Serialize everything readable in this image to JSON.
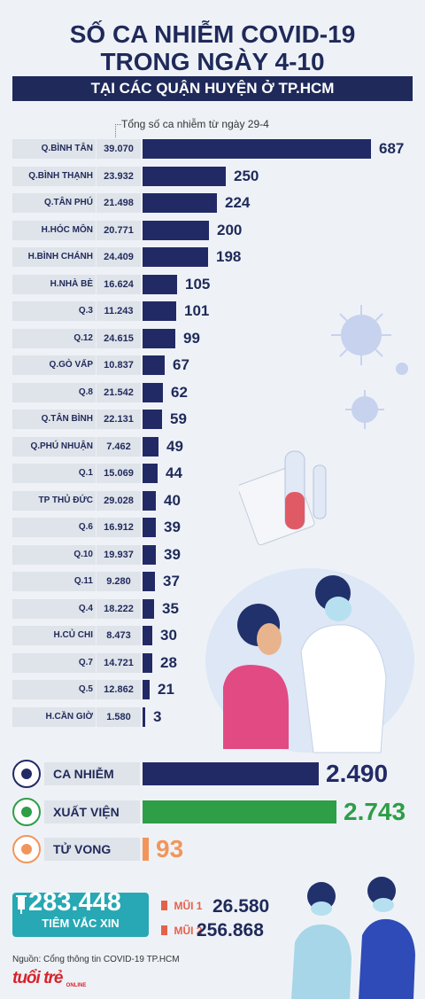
{
  "header": {
    "title_line1": "SỐ CA NHIỄM COVID-19",
    "title_line2": "TRONG NGÀY 4-10",
    "subtitle": "TẠI CÁC QUẬN HUYỆN Ở TP.HCM"
  },
  "note": "Tổng số ca nhiễm từ ngày 29-4",
  "colors": {
    "navy": "#222a66",
    "green": "#2e9e47",
    "orange": "#f2955b",
    "teal": "#27a8b4",
    "red": "#e4624a"
  },
  "chart_data": {
    "type": "bar",
    "orientation": "horizontal",
    "categories": [
      "Q.BÌNH TÂN",
      "Q.BÌNH THẠNH",
      "Q.TÂN PHÚ",
      "H.HÓC MÔN",
      "H.BÌNH CHÁNH",
      "H.NHÀ BÈ",
      "Q.3",
      "Q.12",
      "Q.GÒ VẤP",
      "Q.8",
      "Q.TÂN BÌNH",
      "Q.PHÚ NHUẬN",
      "Q.1",
      "TP THỦ ĐỨC",
      "Q.6",
      "Q.10",
      "Q.11",
      "Q.4",
      "H.CỦ CHI",
      "Q.7",
      "Q.5",
      "H.CẦN GIỜ"
    ],
    "totals": [
      "39.070",
      "23.932",
      "21.498",
      "20.771",
      "24.409",
      "16.624",
      "11.243",
      "24.615",
      "10.837",
      "21.542",
      "22.131",
      "7.462",
      "15.069",
      "29.028",
      "16.912",
      "19.937",
      "9.280",
      "18.222",
      "8.473",
      "14.721",
      "12.862",
      "1.580"
    ],
    "values": [
      687,
      250,
      224,
      200,
      198,
      105,
      101,
      99,
      67,
      62,
      59,
      49,
      44,
      40,
      39,
      39,
      37,
      35,
      30,
      28,
      21,
      3
    ],
    "xlim": [
      0,
      687
    ]
  },
  "summary": [
    {
      "label": "CA NHIỄM",
      "value": 2490,
      "display": "2.490",
      "color": "#222a66",
      "icon": "person-head-icon"
    },
    {
      "label": "XUẤT VIỆN",
      "value": 2743,
      "display": "2.743",
      "color": "#2e9e47",
      "icon": "heart-icon"
    },
    {
      "label": "TỬ VONG",
      "value": 93,
      "display": "93",
      "color": "#f2955b",
      "icon": "hospital-bed-icon"
    }
  ],
  "vaccine": {
    "total": "283.448",
    "label": "TIÊM VẮC XIN",
    "dose1_label": "MŨI 1",
    "dose1_value": "26.580",
    "dose2_label": "MŨI 2",
    "dose2_value": "256.868"
  },
  "source": "Nguồn: Cổng thông tin COVID-19 TP.HCM",
  "logo": "tuổi trẻ",
  "logo_sub": "ONLINE"
}
